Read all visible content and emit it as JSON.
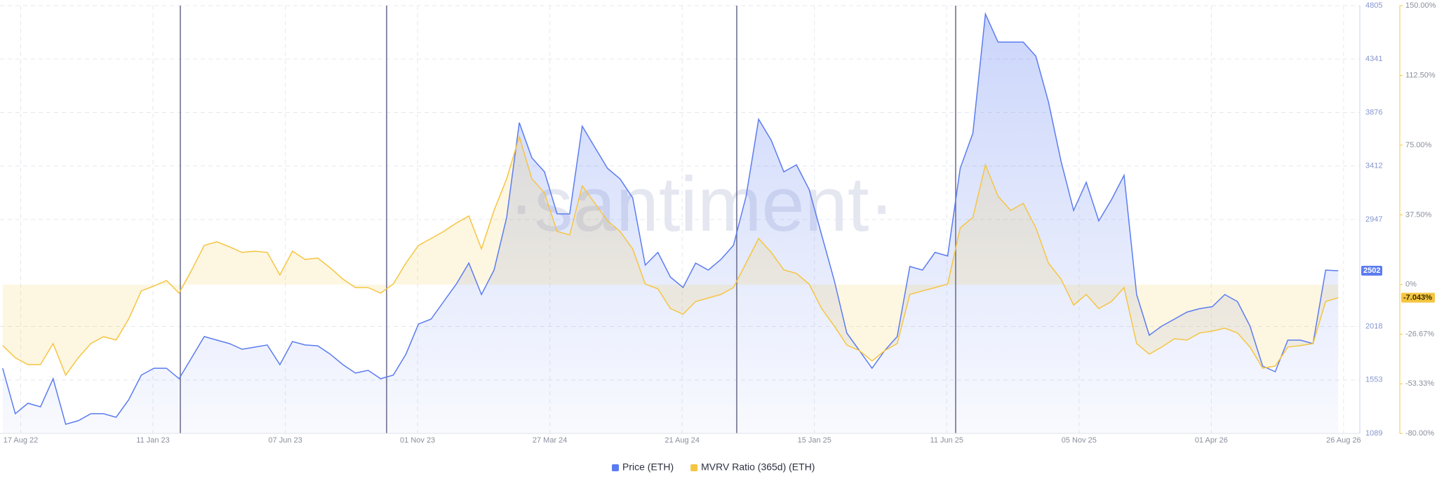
{
  "chart_data": {
    "type": "line",
    "watermark": "·santiment·",
    "x": [
      "28 Jul 22",
      "11 Aug 22",
      "25 Aug 22",
      "08 Sep 22",
      "22 Sep 22",
      "06 Oct 22",
      "20 Oct 22",
      "03 Nov 22",
      "17 Nov 22",
      "01 Dec 22",
      "15 Dec 22",
      "29 Dec 22",
      "12 Jan 23",
      "26 Jan 23",
      "09 Feb 23",
      "23 Feb 23",
      "09 Mar 23",
      "23 Mar 23",
      "06 Apr 23",
      "20 Apr 23",
      "04 May 23",
      "18 May 23",
      "01 Jun 23",
      "15 Jun 23",
      "29 Jun 23",
      "13 Jul 23",
      "27 Jul 23",
      "10 Aug 23",
      "24 Aug 23",
      "07 Sep 23",
      "21 Sep 23",
      "05 Oct 23",
      "19 Oct 23",
      "02 Nov 23",
      "16 Nov 23",
      "30 Nov 23",
      "14 Dec 23",
      "28 Dec 23",
      "11 Jan 24",
      "25 Jan 24",
      "08 Feb 24",
      "22 Feb 24",
      "07 Mar 24",
      "21 Mar 24",
      "04 Apr 24",
      "18 Apr 24",
      "02 May 24",
      "16 May 24",
      "30 May 24",
      "13 Jun 24",
      "27 Jun 24",
      "11 Jul 24",
      "25 Jul 24",
      "08 Aug 24",
      "22 Aug 24",
      "05 Sep 24",
      "19 Sep 24",
      "03 Oct 24",
      "17 Oct 24",
      "31 Oct 24",
      "14 Nov 24",
      "28 Nov 24",
      "12 Dec 24",
      "26 Dec 24",
      "09 Jan 25",
      "23 Jan 25",
      "06 Feb 25",
      "20 Feb 25",
      "06 Mar 25",
      "20 Mar 25",
      "03 Apr 25",
      "17 Apr 25",
      "01 May 25",
      "15 May 25",
      "29 May 25",
      "12 Jun 25",
      "26 Jun 25",
      "10 Jul 25",
      "24 Jul 25",
      "07 Aug 25",
      "21 Aug 25",
      "04 Sep 25",
      "18 Sep 25",
      "02 Oct 25",
      "16 Oct 25",
      "30 Oct 25",
      "13 Nov 25",
      "27 Nov 25",
      "11 Dec 25",
      "25 Dec 25",
      "08 Jan 26",
      "22 Jan 26",
      "05 Feb 26",
      "19 Feb 26",
      "05 Mar 26",
      "19 Mar 26",
      "02 Apr 26",
      "16 Apr 26",
      "30 Apr 26",
      "14 May 26",
      "28 May 26",
      "11 Jun 26",
      "25 Jun 26",
      "09 Jul 26",
      "23 Jul 26",
      "06 Aug 26",
      "20 Aug 26"
    ],
    "xlim": [
      "25 Jul 22",
      "13 Sep 26"
    ],
    "xticks": [
      "17 Aug 22",
      "11 Jan 23",
      "07 Jun 23",
      "01 Nov 23",
      "27 Mar 24",
      "21 Aug 24",
      "15 Jan 25",
      "11 Jun 25",
      "05 Nov 25",
      "01 Apr 26",
      "26 Aug 26"
    ],
    "ylim": [
      1089,
      4805
    ],
    "yticks": [
      1089,
      1553,
      2018,
      2947,
      3412,
      3876,
      4341,
      4805
    ],
    "y2lim": [
      -80,
      150
    ],
    "y2ticks": [
      {
        "value": -80,
        "label": "-80.00%"
      },
      {
        "value": -53.33,
        "label": "-53.33%"
      },
      {
        "value": -26.67,
        "label": "-26.67%"
      },
      {
        "value": 0,
        "label": "0%"
      },
      {
        "value": 37.5,
        "label": "37.50%"
      },
      {
        "value": 75,
        "label": "75.00%"
      },
      {
        "value": 112.5,
        "label": "112.50%"
      },
      {
        "value": 150,
        "label": "150.00%"
      }
    ],
    "grid": true,
    "legend": "bottom",
    "series": [
      {
        "name": "Price (ETH)",
        "color": "#5b7cf0",
        "axis": "y",
        "values": [
          1655,
          1260,
          1351,
          1320,
          1564,
          1168,
          1199,
          1260,
          1260,
          1229,
          1381,
          1595,
          1655,
          1655,
          1564,
          1747,
          1930,
          1899,
          1869,
          1820,
          1838,
          1857,
          1686,
          1887,
          1857,
          1850,
          1777,
          1686,
          1613,
          1637,
          1564,
          1595,
          1777,
          2039,
          2082,
          2234,
          2386,
          2569,
          2295,
          2508,
          2965,
          3788,
          3483,
          3361,
          2996,
          2996,
          3757,
          3574,
          3392,
          3300,
          3136,
          2551,
          2661,
          2447,
          2356,
          2569,
          2508,
          2600,
          2722,
          3148,
          3818,
          3635,
          3361,
          3422,
          3209,
          2813,
          2417,
          1960,
          1808,
          1655,
          1808,
          1930,
          2539,
          2508,
          2661,
          2630,
          3392,
          3696,
          4732,
          4488,
          4488,
          4488,
          4366,
          3970,
          3453,
          3026,
          3270,
          2935,
          3118,
          3331,
          2295,
          1942,
          2021,
          2082,
          2143,
          2173,
          2190,
          2295,
          2234,
          2021,
          1674,
          1625,
          1899,
          1899,
          1869,
          2508,
          2502
        ]
      },
      {
        "name": "MVRV Ratio (365d) (ETH)",
        "color": "#f5c542",
        "axis": "y2",
        "values": [
          -32.8,
          -39.3,
          -43,
          -43,
          -31.7,
          -48.7,
          -39.3,
          -31.7,
          -28,
          -29.8,
          -18.5,
          -3.4,
          -0.8,
          2.2,
          -4.6,
          7.9,
          21.1,
          23,
          20.3,
          17.3,
          18,
          17.3,
          5.2,
          18,
          13.5,
          14.3,
          9,
          3,
          -1.6,
          -1.6,
          -4.6,
          0.3,
          11.6,
          21.1,
          24.8,
          28.6,
          33.1,
          36.9,
          19.2,
          39.9,
          56.9,
          79.5,
          56.9,
          49.3,
          28.6,
          26.7,
          53.1,
          43.7,
          34.3,
          28.6,
          19.2,
          0.3,
          -2.3,
          -12.9,
          -15.9,
          -9.1,
          -7.2,
          -5.3,
          -1.6,
          11.6,
          24.8,
          17.3,
          7.9,
          6,
          0.3,
          -12.9,
          -22.3,
          -32.5,
          -35.5,
          -41.1,
          -35.5,
          -31.7,
          -5.3,
          -3.4,
          -1.6,
          0.3,
          30.5,
          36.1,
          64.4,
          47.5,
          39.9,
          43.7,
          30.5,
          11.6,
          3,
          -11,
          -5.3,
          -12.9,
          -9.1,
          -1.6,
          -31.7,
          -37.4,
          -33.6,
          -29.1,
          -29.8,
          -26,
          -25,
          -23.4,
          -26,
          -33.6,
          -44.9,
          -43.8,
          -33.6,
          -32.8,
          -31.7,
          -9.1,
          -7.043
        ],
        "value_labels": [
          null,
          null,
          null,
          null,
          null,
          null,
          null,
          null,
          null,
          null,
          null,
          null,
          null,
          null,
          null,
          null,
          null,
          null,
          null,
          null,
          null,
          null,
          null,
          null,
          null,
          null,
          null,
          null,
          null,
          null,
          null,
          null,
          null,
          null,
          null,
          null,
          null,
          null,
          null,
          null,
          null,
          null,
          null,
          null,
          null,
          null,
          null,
          null,
          null,
          null,
          null,
          null,
          null,
          null,
          null,
          null,
          null,
          null,
          null,
          null,
          null,
          null,
          null,
          null,
          null,
          null,
          null,
          null,
          null,
          null,
          null,
          null,
          null,
          null,
          null,
          null,
          null,
          null,
          null,
          null,
          null,
          null,
          null,
          null,
          null,
          null,
          null,
          null,
          null,
          null,
          null,
          null,
          null,
          null,
          null,
          null,
          null,
          null,
          null,
          null,
          null,
          null,
          null,
          null,
          null,
          null,
          "-7.043%"
        ]
      }
    ]
  }
}
